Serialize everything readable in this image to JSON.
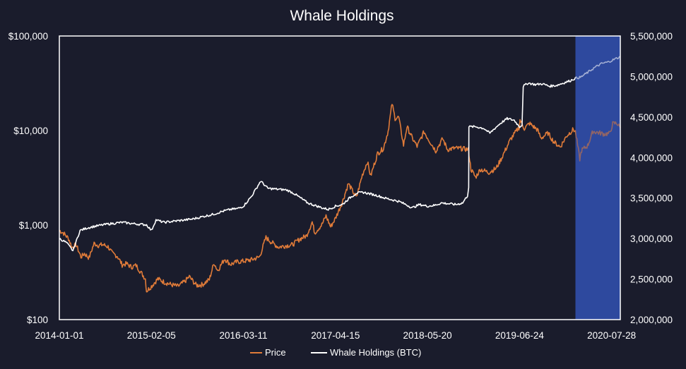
{
  "colors": {
    "background": "#1a1c2c",
    "plot_border": "#ffffff",
    "price": "#e07b39",
    "whale": "#ffffff",
    "highlight": "#2f4a9e"
  },
  "chart_data": {
    "type": "line",
    "title": "Whale Holdings",
    "grid": false,
    "legend_position": "bottom-center",
    "x_ticks": [
      "2014-01-01",
      "2015-02-05",
      "2016-03-11",
      "2017-04-15",
      "2018-05-20",
      "2019-06-24",
      "2020-07-28"
    ],
    "xlim": [
      "2014-01-01",
      "2020-09-04"
    ],
    "y_left": {
      "scale": "log",
      "ylim": [
        100,
        100000
      ],
      "ticks": [
        100,
        1000,
        10000,
        100000
      ],
      "tick_labels": [
        "$100",
        "$1,000",
        "$10,000",
        "$100,000"
      ]
    },
    "y_right": {
      "scale": "linear",
      "ylim": [
        2000000,
        5500000
      ],
      "ticks": [
        2000000,
        2500000,
        3000000,
        3500000,
        4000000,
        4500000,
        5000000,
        5500000
      ],
      "tick_labels": [
        "2,000,000",
        "2,500,000",
        "3,000,000",
        "3,500,000",
        "4,000,000",
        "4,500,000",
        "5,000,000",
        "5,500,000"
      ]
    },
    "highlight_range": [
      "2020-02-22",
      "2020-09-04"
    ],
    "series": [
      {
        "name": "Price",
        "axis": "left",
        "points": [
          [
            "2014-01-01",
            880
          ],
          [
            "2014-01-20",
            820
          ],
          [
            "2014-02-10",
            720
          ],
          [
            "2014-02-25",
            580
          ],
          [
            "2014-03-15",
            620
          ],
          [
            "2014-04-05",
            460
          ],
          [
            "2014-04-20",
            500
          ],
          [
            "2014-05-10",
            450
          ],
          [
            "2014-06-01",
            640
          ],
          [
            "2014-06-20",
            610
          ],
          [
            "2014-07-10",
            620
          ],
          [
            "2014-08-01",
            590
          ],
          [
            "2014-08-20",
            500
          ],
          [
            "2014-09-10",
            470
          ],
          [
            "2014-10-01",
            380
          ],
          [
            "2014-10-20",
            390
          ],
          [
            "2014-11-10",
            360
          ],
          [
            "2014-12-01",
            375
          ],
          [
            "2014-12-20",
            320
          ],
          [
            "2015-01-10",
            270
          ],
          [
            "2015-01-15",
            200
          ],
          [
            "2015-02-05",
            225
          ],
          [
            "2015-03-05",
            270
          ],
          [
            "2015-04-01",
            250
          ],
          [
            "2015-05-01",
            235
          ],
          [
            "2015-06-01",
            225
          ],
          [
            "2015-07-01",
            255
          ],
          [
            "2015-07-20",
            285
          ],
          [
            "2015-08-20",
            230
          ],
          [
            "2015-09-15",
            235
          ],
          [
            "2015-10-15",
            265
          ],
          [
            "2015-11-04",
            400
          ],
          [
            "2015-11-20",
            330
          ],
          [
            "2015-12-20",
            440
          ],
          [
            "2016-01-15",
            385
          ],
          [
            "2016-02-15",
            410
          ],
          [
            "2016-03-11",
            415
          ],
          [
            "2016-04-15",
            430
          ],
          [
            "2016-05-20",
            460
          ],
          [
            "2016-06-17",
            740
          ],
          [
            "2016-07-10",
            660
          ],
          [
            "2016-08-10",
            585
          ],
          [
            "2016-09-10",
            605
          ],
          [
            "2016-10-10",
            620
          ],
          [
            "2016-11-10",
            710
          ],
          [
            "2016-12-10",
            770
          ],
          [
            "2017-01-04",
            1080
          ],
          [
            "2017-01-15",
            830
          ],
          [
            "2017-02-15",
            1010
          ],
          [
            "2017-03-05",
            1250
          ],
          [
            "2017-03-25",
            960
          ],
          [
            "2017-04-15",
            1180
          ],
          [
            "2017-05-15",
            1750
          ],
          [
            "2017-06-10",
            2750
          ],
          [
            "2017-07-15",
            1950
          ],
          [
            "2017-08-10",
            3400
          ],
          [
            "2017-09-01",
            4700
          ],
          [
            "2017-09-15",
            3300
          ],
          [
            "2017-10-15",
            5700
          ],
          [
            "2017-11-10",
            6500
          ],
          [
            "2017-11-30",
            9900
          ],
          [
            "2017-12-17",
            19300
          ],
          [
            "2017-12-30",
            13500
          ],
          [
            "2018-01-15",
            13800
          ],
          [
            "2018-02-05",
            7000
          ],
          [
            "2018-02-20",
            11000
          ],
          [
            "2018-03-15",
            8300
          ],
          [
            "2018-04-05",
            6800
          ],
          [
            "2018-05-05",
            9700
          ],
          [
            "2018-05-20",
            8400
          ],
          [
            "2018-06-25",
            6100
          ],
          [
            "2018-07-25",
            8200
          ],
          [
            "2018-08-15",
            6300
          ],
          [
            "2018-09-15",
            6500
          ],
          [
            "2018-10-15",
            6450
          ],
          [
            "2018-11-14",
            6300
          ],
          [
            "2018-11-25",
            3900
          ],
          [
            "2018-12-15",
            3200
          ],
          [
            "2019-01-05",
            3900
          ],
          [
            "2019-02-10",
            3600
          ],
          [
            "2019-03-15",
            4000
          ],
          [
            "2019-04-05",
            5000
          ],
          [
            "2019-05-15",
            8000
          ],
          [
            "2019-06-24",
            11000
          ],
          [
            "2019-06-26",
            12900
          ],
          [
            "2019-07-15",
            10500
          ],
          [
            "2019-08-06",
            11900
          ],
          [
            "2019-09-10",
            10200
          ],
          [
            "2019-09-25",
            8300
          ],
          [
            "2019-10-26",
            9400
          ],
          [
            "2019-11-20",
            7600
          ],
          [
            "2019-12-18",
            6700
          ],
          [
            "2020-01-15",
            8800
          ],
          [
            "2020-02-13",
            10300
          ],
          [
            "2020-02-22",
            9700
          ],
          [
            "2020-03-12",
            5000
          ],
          [
            "2020-03-20",
            6200
          ],
          [
            "2020-04-15",
            6900
          ],
          [
            "2020-05-08",
            9800
          ],
          [
            "2020-06-01",
            9500
          ],
          [
            "2020-06-25",
            9200
          ],
          [
            "2020-07-20",
            9300
          ],
          [
            "2020-08-02",
            11800
          ],
          [
            "2020-08-20",
            12000
          ],
          [
            "2020-09-04",
            10700
          ]
        ]
      },
      {
        "name": "Whale Holdings (BTC)",
        "axis": "right",
        "points": [
          [
            "2014-01-01",
            3000000
          ],
          [
            "2014-02-01",
            2950000
          ],
          [
            "2014-03-01",
            2850000
          ],
          [
            "2014-04-01",
            3100000
          ],
          [
            "2014-05-01",
            3130000
          ],
          [
            "2014-06-01",
            3150000
          ],
          [
            "2014-08-01",
            3180000
          ],
          [
            "2014-10-01",
            3200000
          ],
          [
            "2014-12-01",
            3180000
          ],
          [
            "2015-01-15",
            3170000
          ],
          [
            "2015-02-05",
            3100000
          ],
          [
            "2015-02-25",
            3230000
          ],
          [
            "2015-04-01",
            3200000
          ],
          [
            "2015-06-01",
            3220000
          ],
          [
            "2015-08-01",
            3240000
          ],
          [
            "2015-09-15",
            3270000
          ],
          [
            "2015-11-01",
            3300000
          ],
          [
            "2015-12-15",
            3340000
          ],
          [
            "2016-01-15",
            3360000
          ],
          [
            "2016-02-15",
            3370000
          ],
          [
            "2016-03-11",
            3400000
          ],
          [
            "2016-04-15",
            3520000
          ],
          [
            "2016-05-25",
            3710000
          ],
          [
            "2016-06-25",
            3620000
          ],
          [
            "2016-08-01",
            3610000
          ],
          [
            "2016-09-15",
            3600000
          ],
          [
            "2016-10-15",
            3560000
          ],
          [
            "2016-11-15",
            3500000
          ],
          [
            "2016-12-15",
            3440000
          ],
          [
            "2017-01-15",
            3410000
          ],
          [
            "2017-02-15",
            3380000
          ],
          [
            "2017-03-15",
            3360000
          ],
          [
            "2017-04-15",
            3400000
          ],
          [
            "2017-05-15",
            3420000
          ],
          [
            "2017-06-15",
            3500000
          ],
          [
            "2017-07-15",
            3560000
          ],
          [
            "2017-08-15",
            3570000
          ],
          [
            "2017-09-15",
            3550000
          ],
          [
            "2017-10-15",
            3530000
          ],
          [
            "2017-11-15",
            3500000
          ],
          [
            "2017-12-15",
            3480000
          ],
          [
            "2018-01-15",
            3460000
          ],
          [
            "2018-02-15",
            3420000
          ],
          [
            "2018-03-15",
            3380000
          ],
          [
            "2018-04-15",
            3420000
          ],
          [
            "2018-05-20",
            3400000
          ],
          [
            "2018-06-20",
            3410000
          ],
          [
            "2018-07-20",
            3440000
          ],
          [
            "2018-08-20",
            3430000
          ],
          [
            "2018-09-20",
            3420000
          ],
          [
            "2018-10-20",
            3440000
          ],
          [
            "2018-11-10",
            3530000
          ],
          [
            "2018-11-15",
            3640000
          ],
          [
            "2018-11-16",
            4380000
          ],
          [
            "2018-12-15",
            4380000
          ],
          [
            "2019-01-20",
            4360000
          ],
          [
            "2019-02-15",
            4300000
          ],
          [
            "2019-03-01",
            4340000
          ],
          [
            "2019-04-01",
            4420000
          ],
          [
            "2019-05-01",
            4480000
          ],
          [
            "2019-06-01",
            4460000
          ],
          [
            "2019-06-24",
            4380000
          ],
          [
            "2019-07-05",
            4400000
          ],
          [
            "2019-07-10",
            4880000
          ],
          [
            "2019-08-01",
            4920000
          ],
          [
            "2019-09-01",
            4900000
          ],
          [
            "2019-10-01",
            4910000
          ],
          [
            "2019-11-01",
            4880000
          ],
          [
            "2019-12-01",
            4890000
          ],
          [
            "2020-01-01",
            4920000
          ],
          [
            "2020-02-01",
            4950000
          ],
          [
            "2020-02-22",
            4980000
          ],
          [
            "2020-03-15",
            4990000
          ],
          [
            "2020-04-15",
            5050000
          ],
          [
            "2020-05-15",
            5110000
          ],
          [
            "2020-06-15",
            5160000
          ],
          [
            "2020-07-15",
            5180000
          ],
          [
            "2020-08-15",
            5220000
          ],
          [
            "2020-09-04",
            5240000
          ]
        ]
      }
    ]
  }
}
